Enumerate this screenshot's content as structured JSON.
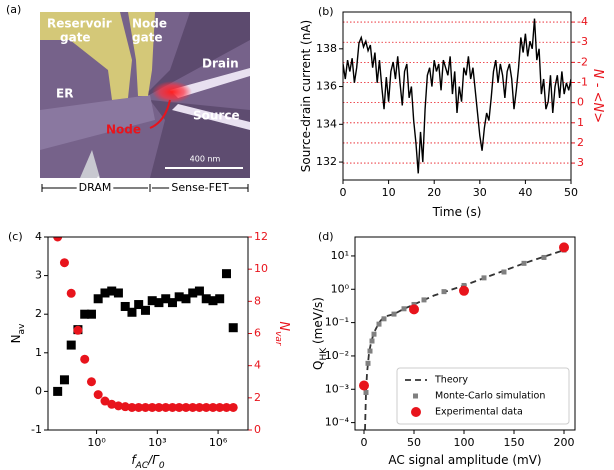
{
  "image_panel": {
    "panel_label": "(a)",
    "reservoir_gate": [
      "Reservoir",
      "gate"
    ],
    "node_gate": [
      "Node",
      "gate"
    ],
    "drain": "Drain",
    "er": "ER",
    "node": "Node",
    "source": "Source",
    "scale_bar": "400 nm",
    "dram": "DRAM",
    "sense_fet": "Sense-FET"
  },
  "chart_data": [
    {
      "type": "line",
      "panel_label": "(b)",
      "xlabel": "Time (s)",
      "ylabel": "Source-drain current (nA)",
      "y2label": "N - <N>",
      "y2_color": "#e8141c",
      "y2_grid": true,
      "x": [
        0,
        0.5,
        1,
        1.5,
        2,
        2.5,
        3,
        3.5,
        4,
        4.5,
        5,
        5.5,
        6,
        6.5,
        7,
        7.5,
        8,
        8.5,
        9,
        9.5,
        10,
        10.5,
        11,
        11.5,
        12,
        12.5,
        13,
        13.5,
        14,
        14.5,
        15,
        15.5,
        16,
        16.5,
        17,
        17.5,
        18,
        18.5,
        19,
        19.5,
        20,
        20.5,
        21,
        21.5,
        22,
        22.5,
        23,
        23.5,
        24,
        24.5,
        25,
        25.5,
        26,
        26.5,
        27,
        27.5,
        28,
        28.5,
        29,
        29.5,
        30,
        30.5,
        31,
        31.5,
        32,
        32.5,
        33,
        33.5,
        34,
        34.5,
        35,
        35.5,
        36,
        36.5,
        37,
        37.5,
        38,
        38.5,
        39,
        39.5,
        40,
        40.5,
        41,
        41.5,
        42,
        42.5,
        43,
        43.5,
        44,
        44.5,
        45,
        45.5,
        46,
        46.5,
        47,
        47.5,
        48,
        48.5,
        49,
        49.5,
        50
      ],
      "series": [
        {
          "color": "#000000",
          "style": "line",
          "values": [
            137.2,
            136.4,
            137.4,
            136.8,
            137.5,
            136.2,
            137.0,
            138.3,
            138.6,
            138.1,
            138.4,
            137.9,
            138.2,
            137.0,
            137.8,
            136.2,
            137.4,
            136.0,
            134.8,
            136.5,
            135.2,
            136.8,
            137.3,
            136.4,
            137.6,
            136.2,
            135.0,
            136.8,
            137.2,
            135.4,
            136.0,
            134.2,
            133.0,
            131.4,
            133.6,
            132.0,
            134.8,
            136.6,
            137.0,
            136.0,
            137.4,
            136.8,
            137.2,
            135.8,
            137.4,
            137.0,
            136.6,
            137.6,
            135.6,
            136.8,
            134.6,
            136.0,
            135.2,
            137.0,
            136.6,
            137.6,
            136.4,
            137.0,
            135.8,
            134.6,
            133.4,
            132.6,
            133.8,
            134.6,
            134.2,
            135.4,
            136.8,
            137.4,
            136.2,
            137.2,
            136.6,
            135.4,
            136.8,
            137.2,
            136.4,
            134.8,
            135.8,
            137.0,
            138.6,
            137.8,
            138.8,
            137.6,
            138.4,
            138.0,
            139.6,
            137.4,
            138.0,
            135.6,
            136.4,
            134.8,
            135.2,
            136.6,
            134.6,
            136.0,
            136.6,
            135.4,
            136.8,
            135.6,
            136.2,
            135.8,
            136.4
          ]
        }
      ],
      "xlim": [
        0,
        50
      ],
      "xticks": [
        0,
        10,
        20,
        30,
        40,
        50
      ],
      "ylim": [
        131.05,
        139.95
      ],
      "yticks": [
        132,
        134,
        136,
        138
      ],
      "y2lim": [
        3.84,
        -4.5
      ],
      "y2ticks": [
        -4,
        -3,
        -2,
        -1,
        0,
        1,
        2,
        3
      ]
    },
    {
      "type": "scatter",
      "panel_label": "(c)",
      "xlabel": "f_AC/Γ_0",
      "ylabel": "N_av",
      "y2label": "N_var",
      "y2_color": "#e8141c",
      "xscale": "log",
      "x": [
        0.012,
        0.026,
        0.056,
        0.12,
        0.26,
        0.56,
        1.2,
        2.6,
        5.6,
        12,
        26,
        56,
        120,
        260,
        560,
        1200,
        2600,
        5600,
        12000,
        26000,
        56000,
        120000,
        260000,
        560000,
        1200000,
        2600000,
        5600000
      ],
      "series": [
        {
          "color": "#000000",
          "style": "square",
          "values": [
            0.0,
            0.3,
            1.2,
            1.6,
            2.0,
            2.0,
            2.4,
            2.55,
            2.6,
            2.55,
            2.2,
            2.05,
            2.25,
            2.1,
            2.35,
            2.3,
            2.4,
            2.3,
            2.45,
            2.4,
            2.55,
            2.6,
            2.4,
            2.35,
            2.4,
            3.05,
            1.65
          ]
        },
        {
          "color": "#e8141c",
          "style": "circle",
          "axis": "y2",
          "values": [
            12,
            10.4,
            8.5,
            6.2,
            4.4,
            3.0,
            2.2,
            1.8,
            1.6,
            1.5,
            1.45,
            1.4,
            1.4,
            1.4,
            1.4,
            1.4,
            1.4,
            1.4,
            1.4,
            1.4,
            1.4,
            1.4,
            1.4,
            1.4,
            1.4,
            1.4,
            1.4
          ]
        }
      ],
      "xlim": [
        0.004,
        30000000
      ],
      "xticks": [
        {
          "value": 1,
          "label": "10⁰"
        },
        {
          "value": 1000,
          "label": "10³"
        },
        {
          "value": 1000000,
          "label": "10⁶"
        }
      ],
      "ylim": [
        -1,
        4
      ],
      "yticks": [
        -1,
        0,
        1,
        2,
        3,
        4
      ],
      "y2lim": [
        0,
        12
      ],
      "y2ticks": [
        0,
        2,
        4,
        6,
        8,
        10,
        12
      ]
    },
    {
      "type": "scatter",
      "panel_label": "(d)",
      "xlabel": "AC signal amplitude (mV)",
      "ylabel": "Q_HK (meV/s)",
      "yscale": "log",
      "legend": "lower right",
      "series": [
        {
          "name": "Theory",
          "color": "#333333",
          "style": "dashed-line",
          "x": [
            1,
            2,
            3,
            5,
            7,
            10,
            15,
            20,
            30,
            40,
            50,
            70,
            100,
            130,
            160,
            200
          ],
          "values": [
            6e-05,
            0.0008,
            0.003,
            0.012,
            0.025,
            0.05,
            0.1,
            0.15,
            0.18,
            0.26,
            0.35,
            0.65,
            1.3,
            2.8,
            6,
            15
          ]
        },
        {
          "name": "Monte-Carlo simulation",
          "color": "#808080",
          "style": "square",
          "x": [
            2,
            4,
            6,
            8,
            10,
            15,
            20,
            30,
            40,
            50,
            60,
            80,
            100,
            120,
            140,
            160,
            180,
            200
          ],
          "values": [
            0.0008,
            0.006,
            0.014,
            0.028,
            0.045,
            0.09,
            0.13,
            0.18,
            0.26,
            0.35,
            0.48,
            0.85,
            1.3,
            2.2,
            3.3,
            6,
            9,
            15
          ]
        },
        {
          "name": "Experimental data",
          "color": "#e8141c",
          "style": "circle",
          "x": [
            0,
            50,
            100,
            200
          ],
          "values": [
            0.0013,
            0.25,
            0.9,
            18
          ]
        }
      ],
      "xlim": [
        -9,
        211
      ],
      "xticks": [
        0,
        50,
        100,
        150,
        200
      ],
      "ylim": [
        6e-05,
        37
      ],
      "yticks": [
        {
          "value": 0.0001,
          "label": "10⁻⁴"
        },
        {
          "value": 0.001,
          "label": "10⁻³"
        },
        {
          "value": 0.01,
          "label": "10⁻²"
        },
        {
          "value": 0.1,
          "label": "10⁻¹"
        },
        {
          "value": 1,
          "label": "10⁰"
        },
        {
          "value": 10,
          "label": "10¹"
        }
      ]
    }
  ]
}
